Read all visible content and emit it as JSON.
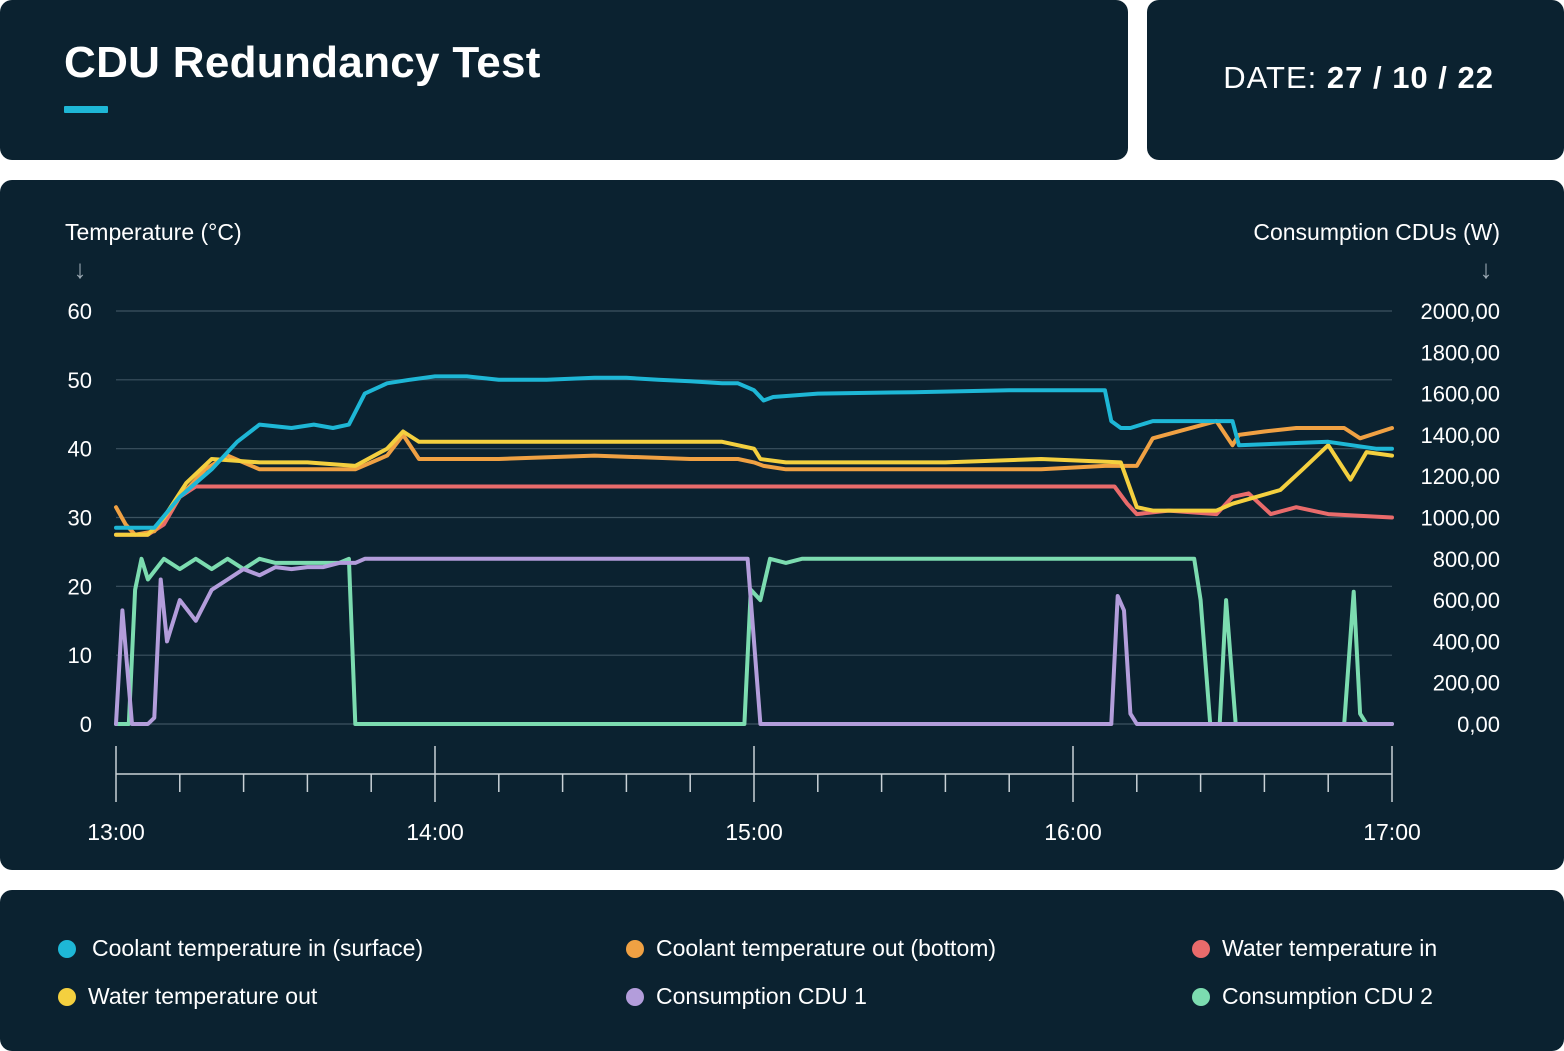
{
  "header": {
    "title": "CDU Redundancy Test",
    "accent_color": "#1eb7d6"
  },
  "date": {
    "label": "DATE:",
    "value": "27 / 10 / 22"
  },
  "chart_data": {
    "type": "line",
    "left_axis": {
      "label": "Temperature (°C)",
      "ticks": [
        "60",
        "50",
        "40",
        "30",
        "20",
        "10",
        "0"
      ],
      "range": [
        0,
        60
      ]
    },
    "right_axis": {
      "label": "Consumption CDUs (W)",
      "ticks": [
        "2000,00",
        "1800,00",
        "1600,00",
        "1400,00",
        "1200,00",
        "1000,00",
        "800,00",
        "600,00",
        "400,00",
        "200,00",
        "0,00"
      ],
      "range": [
        0,
        2000
      ]
    },
    "x_axis": {
      "ticks": [
        "13:00",
        "14:00",
        "15:00",
        "16:00",
        "17:00"
      ],
      "range_hours": [
        13,
        17
      ]
    },
    "grid": true,
    "series": [
      {
        "name": "Coolant temperature in (surface)",
        "color": "#1eb7d6",
        "axis": "left",
        "x": [
          13.0,
          13.12,
          13.2,
          13.3,
          13.38,
          13.45,
          13.55,
          13.62,
          13.68,
          13.73,
          13.78,
          13.85,
          13.92,
          14.0,
          14.1,
          14.2,
          14.35,
          14.5,
          14.6,
          14.7,
          14.8,
          14.9,
          14.95,
          15.0,
          15.03,
          15.06,
          15.2,
          15.5,
          15.8,
          16.0,
          16.1,
          16.12,
          16.15,
          16.18,
          16.25,
          16.5,
          16.52,
          16.8,
          16.95,
          17.0
        ],
        "y": [
          28.5,
          28.5,
          33,
          37,
          41,
          43.5,
          43,
          43.5,
          43,
          43.5,
          48,
          49.5,
          50,
          50.5,
          50.5,
          50,
          50,
          50.3,
          50.3,
          50,
          49.8,
          49.5,
          49.5,
          48.5,
          47,
          47.5,
          48,
          48.2,
          48.5,
          48.5,
          48.5,
          44,
          43,
          43,
          44,
          44,
          40.5,
          41,
          40,
          40
        ]
      },
      {
        "name": "Coolant temperature out (bottom)",
        "color": "#f0a143",
        "axis": "left",
        "x": [
          13.0,
          13.03,
          13.06,
          13.12,
          13.2,
          13.28,
          13.35,
          13.45,
          13.55,
          13.65,
          13.75,
          13.85,
          13.9,
          13.95,
          14.0,
          14.2,
          14.5,
          14.8,
          14.95,
          15.0,
          15.03,
          15.1,
          15.3,
          15.6,
          15.9,
          16.1,
          16.15,
          16.2,
          16.25,
          16.45,
          16.5,
          16.52,
          16.6,
          16.7,
          16.85,
          16.9,
          17.0
        ],
        "y": [
          31.5,
          29,
          27.5,
          28,
          33,
          37,
          39,
          37,
          37,
          37,
          37,
          39,
          42,
          38.5,
          38.5,
          38.5,
          39,
          38.5,
          38.5,
          38,
          37.5,
          37,
          37,
          37,
          37,
          37.5,
          37.5,
          37.5,
          41.5,
          44,
          40.5,
          42,
          42.5,
          43,
          43,
          41.5,
          43
        ]
      },
      {
        "name": "Water temperature in",
        "color": "#e96b6b",
        "axis": "left",
        "x": [
          13.0,
          13.1,
          13.15,
          13.2,
          13.25,
          13.5,
          14.0,
          15.0,
          16.0,
          16.13,
          16.17,
          16.2,
          16.3,
          16.45,
          16.5,
          16.55,
          16.62,
          16.7,
          16.8,
          17.0
        ],
        "y": [
          27.5,
          27.5,
          29,
          33,
          34.5,
          34.5,
          34.5,
          34.5,
          34.5,
          34.5,
          32,
          30.5,
          31,
          30.5,
          33,
          33.5,
          30.5,
          31.5,
          30.5,
          30
        ]
      },
      {
        "name": "Water temperature out",
        "color": "#f4d03f",
        "axis": "left",
        "x": [
          13.0,
          13.1,
          13.15,
          13.22,
          13.3,
          13.45,
          13.6,
          13.75,
          13.85,
          13.9,
          13.95,
          14.05,
          14.3,
          14.6,
          14.9,
          15.0,
          15.02,
          15.1,
          15.3,
          15.6,
          15.9,
          16.15,
          16.2,
          16.25,
          16.45,
          16.5,
          16.65,
          16.72,
          16.8,
          16.87,
          16.92,
          17.0
        ],
        "y": [
          27.5,
          27.5,
          30,
          35,
          38.5,
          38,
          38,
          37.5,
          40,
          42.5,
          41,
          41,
          41,
          41,
          41,
          40,
          38.5,
          38,
          38,
          38,
          38.5,
          38,
          31.5,
          31,
          31,
          32,
          34,
          37,
          40.5,
          35.5,
          39.5,
          39
        ]
      },
      {
        "name": "Consumption CDU 1",
        "color": "#b39ddb",
        "axis": "right",
        "x": [
          13.0,
          13.02,
          13.05,
          13.06,
          13.08,
          13.1,
          13.12,
          13.14,
          13.16,
          13.2,
          13.25,
          13.3,
          13.35,
          13.4,
          13.45,
          13.5,
          13.55,
          13.6,
          13.65,
          13.7,
          13.75,
          13.78,
          14.0,
          14.5,
          14.98,
          15.02,
          15.5,
          16.0,
          16.12,
          16.14,
          16.16,
          16.18,
          16.2,
          16.5,
          17.0
        ],
        "y": [
          0,
          550,
          0,
          0,
          0,
          0,
          30,
          700,
          400,
          600,
          500,
          650,
          700,
          750,
          720,
          760,
          750,
          760,
          760,
          780,
          780,
          800,
          800,
          800,
          800,
          0,
          0,
          0,
          0,
          620,
          550,
          50,
          0,
          0,
          0
        ]
      },
      {
        "name": "Consumption CDU 2",
        "color": "#7cdcb0",
        "axis": "right",
        "x": [
          13.0,
          13.04,
          13.06,
          13.08,
          13.1,
          13.15,
          13.2,
          13.25,
          13.3,
          13.35,
          13.4,
          13.45,
          13.5,
          13.55,
          13.6,
          13.65,
          13.7,
          13.73,
          13.75,
          13.78,
          14.0,
          14.5,
          14.97,
          14.99,
          15.02,
          15.05,
          15.1,
          15.15,
          15.2,
          15.5,
          16.0,
          16.38,
          16.4,
          16.43,
          16.46,
          16.48,
          16.51,
          16.53,
          16.8,
          16.85,
          16.88,
          16.9,
          16.92,
          17.0
        ],
        "y": [
          0,
          0,
          650,
          800,
          700,
          800,
          750,
          800,
          750,
          800,
          750,
          800,
          780,
          780,
          780,
          780,
          780,
          800,
          0,
          0,
          0,
          0,
          0,
          650,
          600,
          800,
          780,
          800,
          800,
          800,
          800,
          800,
          600,
          0,
          0,
          600,
          0,
          0,
          0,
          0,
          640,
          50,
          0,
          0
        ]
      }
    ]
  },
  "legend": {
    "items": [
      {
        "label": "Coolant temperature in (surface)",
        "color": "#1eb7d6"
      },
      {
        "label": "Coolant temperature out (bottom)",
        "color": "#f0a143"
      },
      {
        "label": "Water temperature in",
        "color": "#e96b6b"
      },
      {
        "label": "Water temperature out",
        "color": "#f4d03f"
      },
      {
        "label": "Consumption CDU 1",
        "color": "#b39ddb"
      },
      {
        "label": "Consumption CDU 2",
        "color": "#7cdcb0"
      }
    ]
  }
}
